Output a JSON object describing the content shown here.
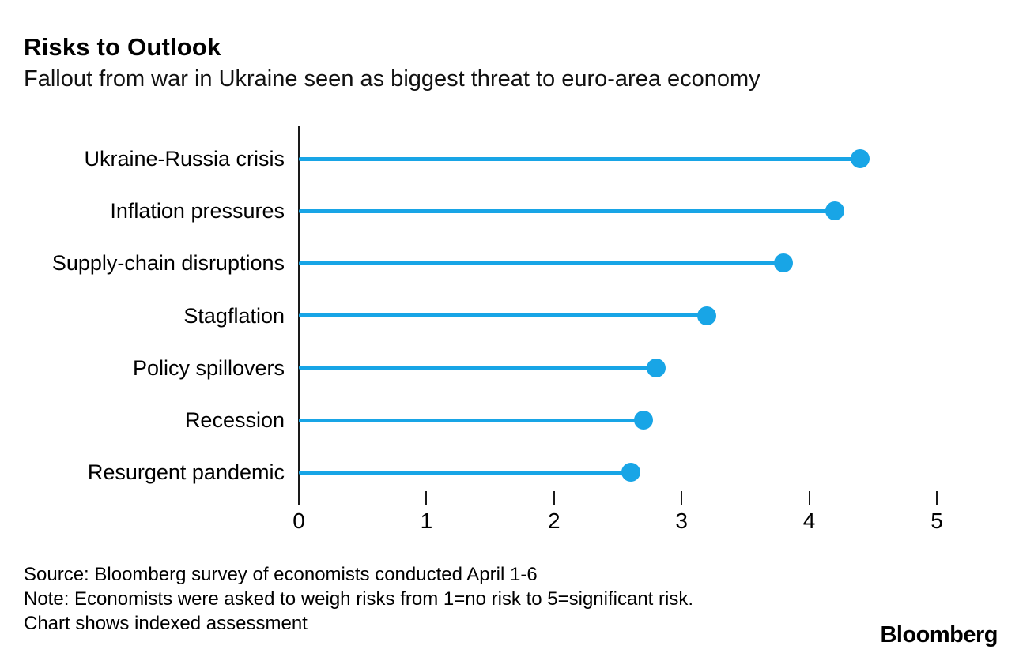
{
  "header": {
    "title": "Risks to Outlook",
    "subtitle": "Fallout from war in Ukraine seen as biggest threat to euro-area economy"
  },
  "chart_data": {
    "type": "bar",
    "style": "lollipop",
    "orientation": "horizontal",
    "categories": [
      "Ukraine-Russia crisis",
      "Inflation pressures",
      "Supply-chain disruptions",
      "Stagflation",
      "Policy spillovers",
      "Recession",
      "Resurgent pandemic"
    ],
    "values": [
      4.4,
      4.2,
      3.8,
      3.2,
      2.8,
      2.7,
      2.6
    ],
    "xlim": [
      0,
      5
    ],
    "x_ticks": [
      "0",
      "1",
      "2",
      "3",
      "4",
      "5"
    ],
    "grid": false,
    "legend": false,
    "accent_color": "#18a5e6",
    "axis_color": "#1a1a1a"
  },
  "footer": {
    "source": "Source: Bloomberg survey of economists conducted April 1-6",
    "note_line1": "Note: Economists were asked to weigh risks from 1=no risk to 5=significant risk.",
    "note_line2": "Chart shows indexed assessment",
    "logo": "Bloomberg"
  }
}
